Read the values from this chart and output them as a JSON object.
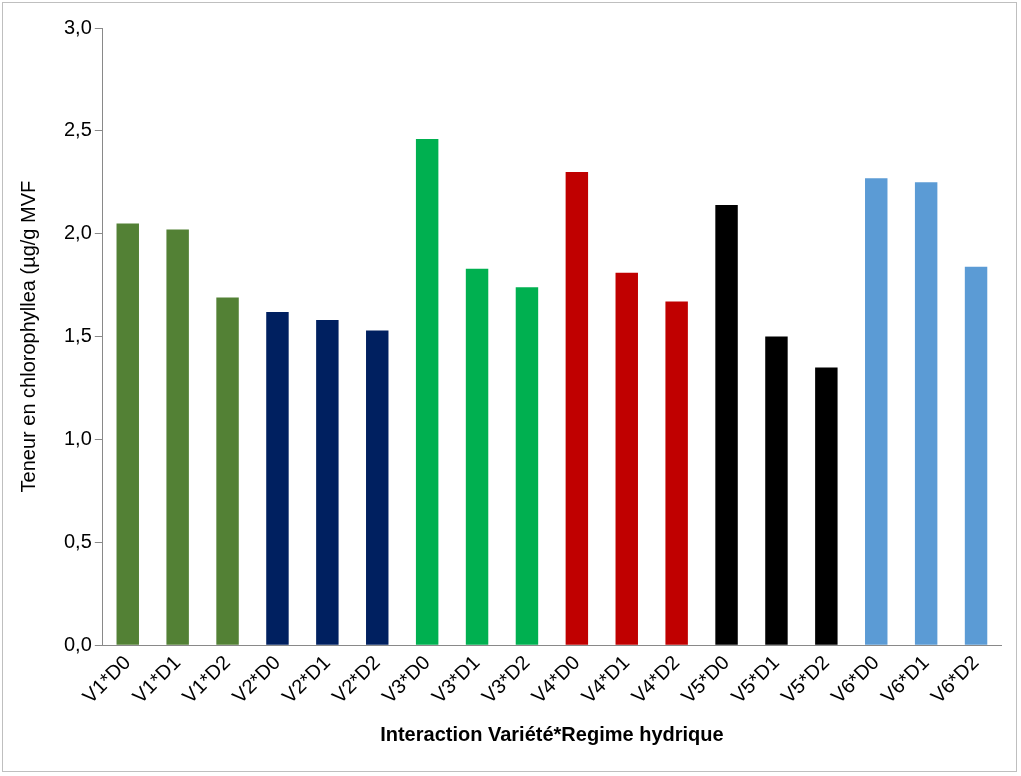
{
  "chart_data": {
    "type": "bar",
    "xlabel": "Interaction Variété*Regime hydrique",
    "ylabel": "Teneur en chlorophyllea (µg/g MVF",
    "categories": [
      "V1*D0",
      "V1*D1",
      "V1*D2",
      "V2*D0",
      "V2*D1",
      "V2*D2",
      "V3*D0",
      "V3*D1",
      "V3*D2",
      "V4*D0",
      "V4*D1",
      "V4*D2",
      "V5*D0",
      "V5*D1",
      "V5*D2",
      "V6*D0",
      "V6*D1",
      "V6*D2"
    ],
    "values": [
      2.05,
      2.02,
      1.69,
      1.62,
      1.58,
      1.53,
      2.46,
      1.83,
      1.74,
      2.3,
      1.81,
      1.67,
      2.14,
      1.5,
      1.35,
      2.27,
      2.25,
      1.84
    ],
    "colors": [
      "#538135",
      "#538135",
      "#538135",
      "#002060",
      "#002060",
      "#002060",
      "#00b050",
      "#00b050",
      "#00b050",
      "#c00000",
      "#c00000",
      "#c00000",
      "#000000",
      "#000000",
      "#000000",
      "#5b9bd5",
      "#5b9bd5",
      "#5b9bd5"
    ],
    "ylim": [
      0,
      3
    ],
    "yticks": [
      {
        "value": 0,
        "label": "0,0"
      },
      {
        "value": 0.5,
        "label": "0,5"
      },
      {
        "value": 1,
        "label": "1,0"
      },
      {
        "value": 1.5,
        "label": "1,5"
      },
      {
        "value": 2,
        "label": "2,0"
      },
      {
        "value": 2.5,
        "label": "2,5"
      },
      {
        "value": 3,
        "label": "3,0"
      }
    ],
    "grid": false,
    "legend": false
  }
}
